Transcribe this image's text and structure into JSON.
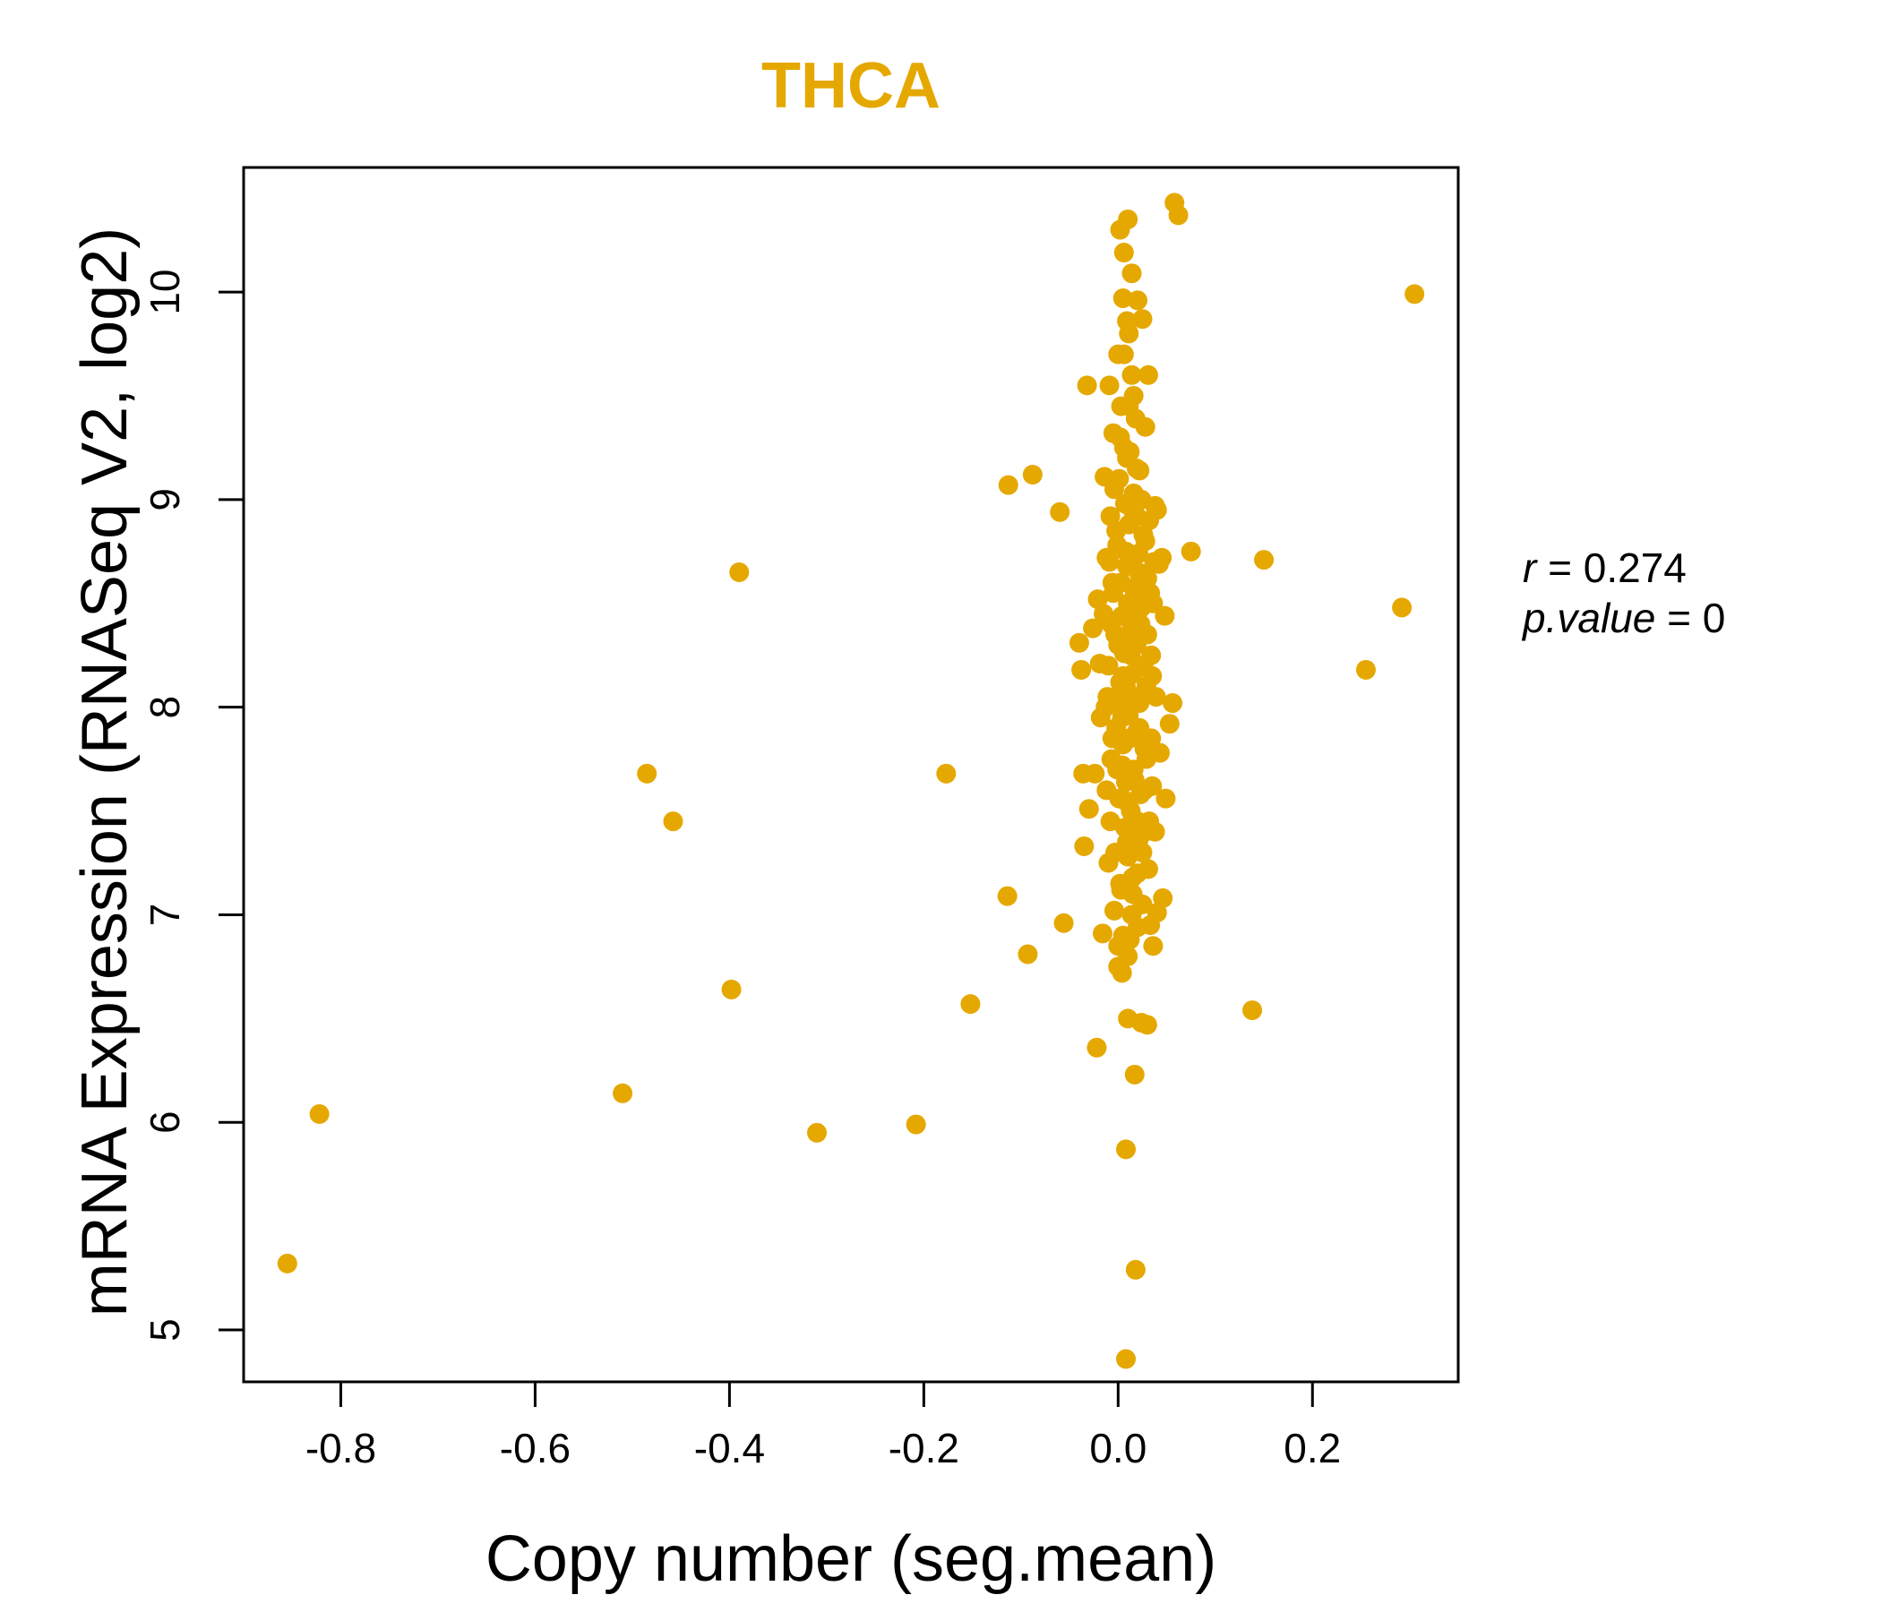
{
  "chart_data": {
    "type": "scatter",
    "title": "THCA",
    "xlabel": "Copy number (seg.mean)",
    "ylabel": "mRNA Expression (RNASeq V2, log2)",
    "xlim": [
      -0.9,
      0.35
    ],
    "ylim": [
      4.75,
      10.6
    ],
    "xticks": [
      -0.8,
      -0.6,
      -0.4,
      -0.2,
      0.0,
      0.2
    ],
    "xtick_labels": [
      "-0.8",
      "-0.6",
      "-0.4",
      "-0.2",
      "0.0",
      "0.2"
    ],
    "yticks": [
      5,
      6,
      7,
      8,
      9,
      10
    ],
    "ytick_labels": [
      "5",
      "6",
      "7",
      "8",
      "9",
      "10"
    ],
    "grid": false,
    "point_color": "#E5A800",
    "annotation": {
      "r_label": "r",
      "r_value": "0.274",
      "p_label": "p.value",
      "p_value": "0"
    },
    "series": [
      {
        "name": "THCA",
        "points": [
          [
            -0.855,
            5.32
          ],
          [
            -0.822,
            6.04
          ],
          [
            -0.51,
            6.14
          ],
          [
            -0.485,
            7.68
          ],
          [
            -0.458,
            7.45
          ],
          [
            -0.398,
            6.64
          ],
          [
            -0.39,
            8.65
          ],
          [
            -0.31,
            5.95
          ],
          [
            -0.208,
            5.99
          ],
          [
            -0.177,
            7.68
          ],
          [
            -0.152,
            6.57
          ],
          [
            -0.114,
            7.09
          ],
          [
            -0.113,
            9.07
          ],
          [
            -0.093,
            6.81
          ],
          [
            -0.088,
            9.12
          ],
          [
            -0.06,
            8.94
          ],
          [
            -0.056,
            6.96
          ],
          [
            -0.04,
            8.31
          ],
          [
            -0.038,
            8.18
          ],
          [
            -0.036,
            7.68
          ],
          [
            -0.035,
            7.33
          ],
          [
            -0.032,
            9.55
          ],
          [
            -0.03,
            7.51
          ],
          [
            -0.026,
            8.38
          ],
          [
            -0.024,
            7.68
          ],
          [
            -0.022,
            6.36
          ],
          [
            -0.021,
            8.52
          ],
          [
            -0.019,
            8.21
          ],
          [
            -0.016,
            6.91
          ],
          [
            -0.014,
            9.11
          ],
          [
            -0.012,
            8.72
          ],
          [
            -0.011,
            8.05
          ],
          [
            -0.01,
            7.25
          ],
          [
            -0.009,
            9.55
          ],
          [
            -0.008,
            8.92
          ],
          [
            -0.007,
            7.75
          ],
          [
            -0.006,
            8.6
          ],
          [
            -0.005,
            9.32
          ],
          [
            -0.004,
            7.02
          ],
          [
            -0.003,
            8.35
          ],
          [
            -0.002,
            7.9
          ],
          [
            -0.001,
            8.78
          ],
          [
            0.0,
            6.75
          ],
          [
            0.0,
            9.7
          ],
          [
            0.001,
            7.56
          ],
          [
            0.002,
            8.12
          ],
          [
            0.002,
            10.3
          ],
          [
            0.003,
            9.45
          ],
          [
            0.003,
            7.12
          ],
          [
            0.004,
            8.44
          ],
          [
            0.004,
            6.72
          ],
          [
            0.005,
            9.97
          ],
          [
            0.005,
            7.82
          ],
          [
            0.006,
            8.26
          ],
          [
            0.006,
            10.19
          ],
          [
            0.007,
            7.42
          ],
          [
            0.007,
            8.98
          ],
          [
            0.008,
            5.87
          ],
          [
            0.008,
            4.86
          ],
          [
            0.008,
            7.64
          ],
          [
            0.009,
            9.86
          ],
          [
            0.009,
            8.68
          ],
          [
            0.01,
            6.5
          ],
          [
            0.01,
            7.28
          ],
          [
            0.01,
            10.35
          ],
          [
            0.011,
            8.88
          ],
          [
            0.011,
            7.96
          ],
          [
            0.012,
            9.23
          ],
          [
            0.012,
            6.88
          ],
          [
            0.013,
            8.41
          ],
          [
            0.013,
            7.5
          ],
          [
            0.014,
            9.6
          ],
          [
            0.014,
            10.09
          ],
          [
            0.015,
            8.16
          ],
          [
            0.015,
            7.18
          ],
          [
            0.016,
            9.03
          ],
          [
            0.016,
            7.7
          ],
          [
            0.017,
            6.23
          ],
          [
            0.017,
            8.56
          ],
          [
            0.018,
            9.39
          ],
          [
            0.018,
            5.29
          ],
          [
            0.019,
            7.88
          ],
          [
            0.019,
            8.3
          ],
          [
            0.02,
            6.94
          ],
          [
            0.02,
            9.96
          ],
          [
            0.021,
            8.74
          ],
          [
            0.021,
            7.36
          ],
          [
            0.022,
            9.14
          ],
          [
            0.022,
            8.02
          ],
          [
            0.023,
            7.58
          ],
          [
            0.024,
            6.48
          ],
          [
            0.024,
            8.48
          ],
          [
            0.025,
            9.87
          ],
          [
            0.025,
            7.05
          ],
          [
            0.026,
            8.83
          ],
          [
            0.027,
            7.8
          ],
          [
            0.028,
            9.35
          ],
          [
            0.028,
            7.4
          ],
          [
            0.029,
            8.1
          ],
          [
            0.03,
            6.47
          ],
          [
            0.03,
            8.62
          ],
          [
            0.031,
            7.22
          ],
          [
            0.032,
            8.9
          ],
          [
            0.033,
            6.95
          ],
          [
            0.034,
            8.25
          ],
          [
            0.035,
            7.62
          ],
          [
            0.036,
            8.5
          ],
          [
            0.038,
            8.97
          ],
          [
            0.04,
            7.01
          ],
          [
            0.042,
            8.69
          ],
          [
            0.043,
            7.78
          ],
          [
            0.045,
            8.72
          ],
          [
            0.046,
            7.08
          ],
          [
            0.048,
            8.44
          ],
          [
            0.049,
            7.56
          ],
          [
            0.053,
            7.92
          ],
          [
            0.056,
            8.02
          ],
          [
            0.058,
            10.43
          ],
          [
            0.062,
            10.37
          ],
          [
            0.075,
            8.75
          ],
          [
            0.138,
            6.54
          ],
          [
            0.15,
            8.71
          ],
          [
            0.255,
            8.18
          ],
          [
            0.292,
            8.48
          ],
          [
            0.305,
            9.99
          ],
          [
            -0.018,
            7.95
          ],
          [
            -0.015,
            8.45
          ],
          [
            -0.013,
            8.0
          ],
          [
            -0.012,
            7.6
          ],
          [
            -0.01,
            8.2
          ],
          [
            -0.009,
            8.7
          ],
          [
            -0.008,
            7.45
          ],
          [
            -0.007,
            8.4
          ],
          [
            -0.006,
            7.85
          ],
          [
            -0.005,
            8.55
          ],
          [
            -0.004,
            9.05
          ],
          [
            -0.003,
            7.3
          ],
          [
            -0.002,
            8.85
          ],
          [
            -0.001,
            7.7
          ],
          [
            0.0,
            8.3
          ],
          [
            0.001,
            9.1
          ],
          [
            0.002,
            7.15
          ],
          [
            0.003,
            8.6
          ],
          [
            0.004,
            7.95
          ],
          [
            0.005,
            8.15
          ],
          [
            0.006,
            9.25
          ],
          [
            0.007,
            7.55
          ],
          [
            0.008,
            8.75
          ],
          [
            0.009,
            7.35
          ],
          [
            0.01,
            8.5
          ],
          [
            0.011,
            9.45
          ],
          [
            0.012,
            7.85
          ],
          [
            0.013,
            8.25
          ],
          [
            0.014,
            7.0
          ],
          [
            0.015,
            8.95
          ],
          [
            0.016,
            8.35
          ],
          [
            0.017,
            7.65
          ],
          [
            0.018,
            8.05
          ],
          [
            0.019,
            9.15
          ],
          [
            0.02,
            7.45
          ],
          [
            0.021,
            8.65
          ],
          [
            0.022,
            7.9
          ],
          [
            0.023,
            8.4
          ],
          [
            0.024,
            9.0
          ],
          [
            0.025,
            7.3
          ],
          [
            0.026,
            8.2
          ],
          [
            0.027,
            7.6
          ],
          [
            0.028,
            8.8
          ],
          [
            0.029,
            7.75
          ],
          [
            0.03,
            8.35
          ],
          [
            0.031,
            9.6
          ],
          [
            0.032,
            7.45
          ],
          [
            0.033,
            8.55
          ],
          [
            0.034,
            7.85
          ],
          [
            0.035,
            8.15
          ],
          [
            0.036,
            6.85
          ],
          [
            0.037,
            8.7
          ],
          [
            0.038,
            7.4
          ],
          [
            0.039,
            8.05
          ],
          [
            0.04,
            8.95
          ],
          [
            0.0,
            6.85
          ],
          [
            0.005,
            6.9
          ],
          [
            0.01,
            6.8
          ],
          [
            0.015,
            7.1
          ],
          [
            0.02,
            7.2
          ],
          [
            0.003,
            8.0
          ],
          [
            0.008,
            8.1
          ],
          [
            0.012,
            8.35
          ],
          [
            0.017,
            8.45
          ],
          [
            0.022,
            8.6
          ],
          [
            0.006,
            9.7
          ],
          [
            0.011,
            9.8
          ],
          [
            0.016,
            9.5
          ],
          [
            0.002,
            9.3
          ],
          [
            0.009,
            9.2
          ],
          [
            -0.002,
            8.05
          ],
          [
            0.004,
            7.72
          ],
          [
            0.014,
            7.42
          ],
          [
            0.019,
            8.92
          ],
          [
            0.027,
            8.52
          ]
        ]
      }
    ]
  }
}
